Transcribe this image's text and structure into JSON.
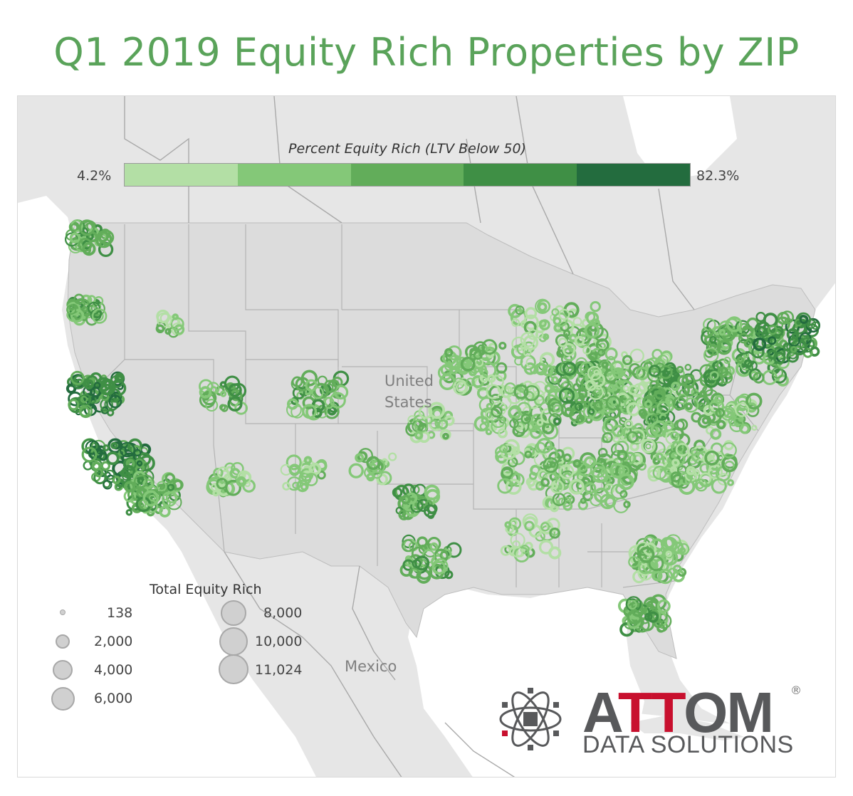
{
  "title": "Q1 2019 Equity Rich Properties by ZIP",
  "color_legend": {
    "title": "Percent Equity Rich (LTV Below 50)",
    "min_label": "4.2%",
    "max_label": "82.3%",
    "colors": [
      "#b3dfa5",
      "#84c878",
      "#62ad5a",
      "#3f8f45",
      "#236c3e"
    ]
  },
  "size_legend": {
    "title": "Total Equity Rich",
    "items": [
      {
        "label": "138",
        "value": 138
      },
      {
        "label": "2,000",
        "value": 2000
      },
      {
        "label": "4,000",
        "value": 4000
      },
      {
        "label": "6,000",
        "value": 6000
      },
      {
        "label": "8,000",
        "value": 8000
      },
      {
        "label": "10,000",
        "value": 10000
      },
      {
        "label": "11,024",
        "value": 11024
      }
    ]
  },
  "map_labels": {
    "united_states": "United States",
    "mexico": "Mexico"
  },
  "logo": {
    "name_prefix": "A",
    "name_highlight": "TT",
    "name_suffix": "OM",
    "tagline": "DATA SOLUTIONS",
    "registered": "®"
  },
  "colors": {
    "title": "#5aa35a",
    "land": "#e6e6e6",
    "water": "#ffffff",
    "borders": "#a9a9a9"
  }
}
